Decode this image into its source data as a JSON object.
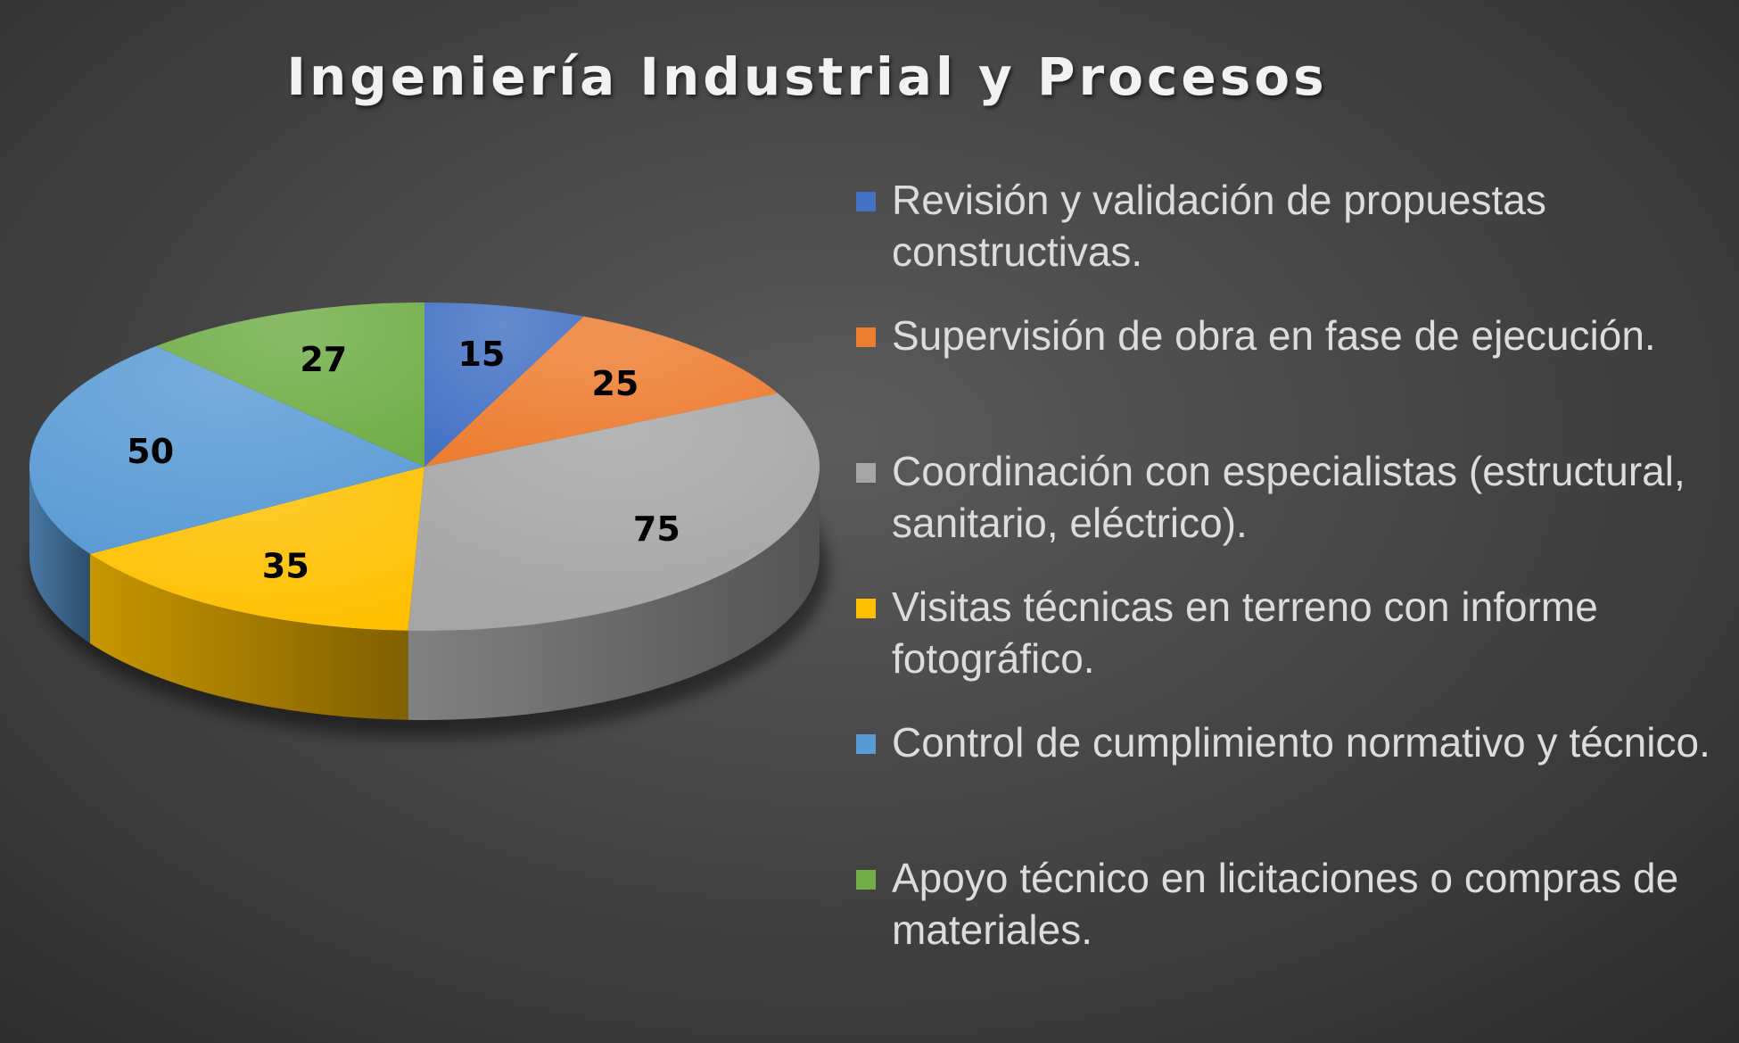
{
  "chart_data": {
    "type": "pie",
    "title": "Ingeniería Industrial y Procesos",
    "legend_position": "right",
    "slices": [
      {
        "label": "Revisión y validación de propuestas constructivas.",
        "value": 15,
        "color": "#4472c4"
      },
      {
        "label": "Supervisión de obra en fase de ejecución.",
        "value": 25,
        "color": "#ed7d31"
      },
      {
        "label": "Coordinación con especialistas (estructural, sanitario, eléctrico).",
        "value": 75,
        "color": "#a5a5a5"
      },
      {
        "label": "Visitas técnicas en terreno con informe fotográfico.",
        "value": 35,
        "color": "#ffc000"
      },
      {
        "label": "Control de cumplimiento normativo y técnico.",
        "value": 50,
        "color": "#5b9bd5"
      },
      {
        "label": "Apoyo técnico en licitaciones o compras de materiales.",
        "value": 27,
        "color": "#70ad47"
      }
    ]
  }
}
